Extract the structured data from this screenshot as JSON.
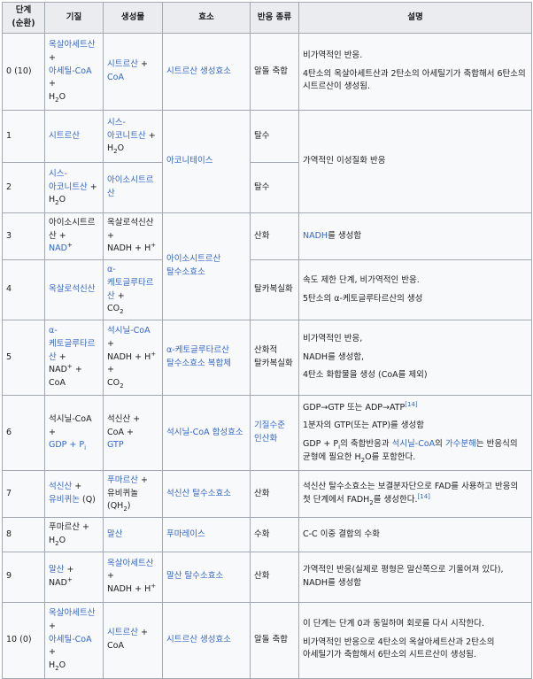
{
  "headers": [
    "단계 (순환)",
    "기질",
    "생성물",
    "효소",
    "반응 종류",
    "설명"
  ],
  "rows": [
    {
      "step": "0 (10)",
      "substrate": [
        [
          {
            "t": "옥살아세트산",
            "l": 1
          },
          {
            "t": " + "
          }
        ],
        [
          {
            "t": "아세틸-CoA",
            "l": 1
          },
          {
            "t": " + "
          }
        ],
        [
          {
            "t": "H"
          },
          {
            "t": "2",
            "sub": 1
          },
          {
            "t": "O"
          }
        ]
      ],
      "product": [
        [
          {
            "t": "시트르산",
            "l": 1
          },
          {
            "t": " + "
          }
        ],
        [
          {
            "t": "CoA",
            "l": 1
          }
        ]
      ],
      "enzyme": [
        [
          {
            "t": "시트르산 생성효소",
            "l": 1
          }
        ]
      ],
      "type": [
        [
          {
            "t": "알돌 축합"
          }
        ]
      ],
      "desc": [
        [
          {
            "t": "비가역적인 반응."
          }
        ],
        [
          {
            "t": "4탄소의 옥살아세트산과 2탄소의 아세틸기가 축합해서 6탄소의 시트르산이 생성됨."
          }
        ]
      ]
    },
    {
      "step": "1",
      "substrate": [
        [
          {
            "t": "시트르산",
            "l": 1
          }
        ]
      ],
      "product": [
        [
          {
            "t": "시스-아코니트산",
            "l": 1
          },
          {
            "t": " + "
          }
        ],
        [
          {
            "t": "H"
          },
          {
            "t": "2",
            "sub": 1
          },
          {
            "t": "O"
          }
        ]
      ],
      "enzyme": [
        [
          {
            "t": "아코니테이스",
            "l": 1
          }
        ]
      ],
      "type": [
        [
          {
            "t": "탈수"
          }
        ]
      ],
      "desc": [
        [
          {
            "t": "가역적인 이성질화 반응"
          }
        ]
      ]
    },
    {
      "step": "2",
      "substrate": [
        [
          {
            "t": "시스-아코니트산",
            "l": 1
          },
          {
            "t": " + "
          }
        ],
        [
          {
            "t": "H"
          },
          {
            "t": "2",
            "sub": 1
          },
          {
            "t": "O"
          }
        ]
      ],
      "product": [
        [
          {
            "t": "아이소시트르산",
            "l": 1
          }
        ]
      ],
      "type": [
        [
          {
            "t": "탈수"
          }
        ]
      ]
    },
    {
      "step": "3",
      "substrate": [
        [
          {
            "t": "아이소시트르산 + "
          }
        ],
        [
          {
            "t": "NAD",
            "l": 1
          },
          {
            "t": "+",
            "sup": 1
          }
        ]
      ],
      "product": [
        [
          {
            "t": "옥살로석신산 + "
          }
        ],
        [
          {
            "t": "NADH + H"
          },
          {
            "t": "+",
            "sup": 1
          }
        ]
      ],
      "enzyme": [
        [
          {
            "t": "아이소시트르산 탈수소효소",
            "l": 1
          }
        ]
      ],
      "type": [
        [
          {
            "t": "산화"
          }
        ]
      ],
      "desc": [
        [
          {
            "t": "NADH",
            "l": 1
          },
          {
            "t": "를 생성함"
          }
        ]
      ]
    },
    {
      "step": "4",
      "substrate": [
        [
          {
            "t": "옥살로석신산",
            "l": 1
          }
        ]
      ],
      "product": [
        [
          {
            "t": "α-케토글루타르산",
            "l": 1
          },
          {
            "t": " + "
          }
        ],
        [
          {
            "t": "CO"
          },
          {
            "t": "2",
            "sub": 1
          }
        ]
      ],
      "type": [
        [
          {
            "t": "탈카복실화"
          }
        ]
      ],
      "desc": [
        [
          {
            "t": "속도 제한 단계, 비가역적인 반응."
          }
        ],
        [
          {
            "t": "5탄소의 α-케토글루타르산의 생성"
          }
        ]
      ]
    },
    {
      "step": "5",
      "substrate": [
        [
          {
            "t": "α-케토글루타르산",
            "l": 1
          },
          {
            "t": " + "
          }
        ],
        [
          {
            "t": "NAD"
          },
          {
            "t": "+",
            "sup": 1
          },
          {
            "t": " + "
          }
        ],
        [
          {
            "t": "CoA"
          }
        ]
      ],
      "product": [
        [
          {
            "t": "석시닐-CoA",
            "l": 1
          },
          {
            "t": " + "
          }
        ],
        [
          {
            "t": "NADH + H"
          },
          {
            "t": "+",
            "sup": 1
          },
          {
            "t": " + "
          }
        ],
        [
          {
            "t": "CO"
          },
          {
            "t": "2",
            "sub": 1
          }
        ]
      ],
      "enzyme": [
        [
          {
            "t": "α-케토글루타르산 탈수소효소 복합체",
            "l": 1
          }
        ]
      ],
      "type": [
        [
          {
            "t": "산화적 탈카복실화"
          }
        ]
      ],
      "desc": [
        [
          {
            "t": "비가역적인 반응,"
          }
        ],
        [
          {
            "t": "NADH를 생성함,"
          }
        ],
        [
          {
            "t": "4탄소 화합물을 생성 (CoA를 제외)"
          }
        ]
      ]
    },
    {
      "step": "6",
      "substrate": [
        [
          {
            "t": "석시닐-CoA + "
          }
        ],
        [
          {
            "t": "GDP + P",
            "l": 1
          },
          {
            "t": "i",
            "sub": 1,
            "l": 1
          }
        ]
      ],
      "product": [
        [
          {
            "t": "석신산 + "
          }
        ],
        [
          {
            "t": "CoA + "
          }
        ],
        [
          {
            "t": "GTP",
            "l": 1
          }
        ]
      ],
      "enzyme": [
        [
          {
            "t": "석시닐-CoA 합성효소",
            "l": 1
          }
        ]
      ],
      "type": [
        [
          {
            "t": "기질수준 인산화",
            "l": 1
          }
        ]
      ],
      "desc": [
        [
          {
            "t": "GDP→GTP 또는 ADP→ATP"
          },
          {
            "t": "[14]",
            "sup": 1,
            "l": 1
          }
        ],
        [
          {
            "t": "1분자의 GTP(또는 ATP)를 생성함"
          }
        ],
        [
          {
            "t": "GDP + P"
          },
          {
            "t": "i",
            "sub": 1
          },
          {
            "t": "의 축합반응과 "
          },
          {
            "t": "석시닐-CoA",
            "l": 1
          },
          {
            "t": "의 "
          },
          {
            "t": "가수분해",
            "l": 1
          },
          {
            "t": "는 반응식의 균형에 필요한 H"
          },
          {
            "t": "2",
            "sub": 1
          },
          {
            "t": "O를 포함한다."
          }
        ]
      ]
    },
    {
      "step": "7",
      "substrate": [
        [
          {
            "t": "석신산",
            "l": 1
          },
          {
            "t": " + "
          }
        ],
        [
          {
            "t": "유비퀴논",
            "l": 1
          },
          {
            "t": " (Q)"
          }
        ]
      ],
      "product": [
        [
          {
            "t": "푸마르산",
            "l": 1
          },
          {
            "t": " + "
          }
        ],
        [
          {
            "t": "유비퀴놀 (QH"
          },
          {
            "t": "2",
            "sub": 1
          },
          {
            "t": ")"
          }
        ]
      ],
      "enzyme": [
        [
          {
            "t": "석신산 탈수소효소",
            "l": 1
          }
        ]
      ],
      "type": [
        [
          {
            "t": "산화"
          }
        ]
      ],
      "desc": [
        [
          {
            "t": "석신산 탈수소효소는 보결분자단으로 FAD를 사용하고 반응의 첫 단계에서 FADH"
          },
          {
            "t": "2",
            "sub": 1
          },
          {
            "t": "를 생성한다."
          },
          {
            "t": "[14]",
            "sup": 1,
            "l": 1
          }
        ]
      ]
    },
    {
      "step": "8",
      "substrate": [
        [
          {
            "t": "푸마르산 + "
          }
        ],
        [
          {
            "t": "H"
          },
          {
            "t": "2",
            "sub": 1
          },
          {
            "t": "O"
          }
        ]
      ],
      "product": [
        [
          {
            "t": "말산",
            "l": 1
          }
        ]
      ],
      "enzyme": [
        [
          {
            "t": "푸마레이스",
            "l": 1
          }
        ]
      ],
      "type": [
        [
          {
            "t": "수화"
          }
        ]
      ],
      "desc": [
        [
          {
            "t": "C-C 이중 결합의 수화"
          }
        ]
      ]
    },
    {
      "step": "9",
      "substrate": [
        [
          {
            "t": "말산",
            "l": 1
          },
          {
            "t": " + "
          }
        ],
        [
          {
            "t": "NAD"
          },
          {
            "t": "+",
            "sup": 1
          }
        ]
      ],
      "product": [
        [
          {
            "t": "옥살아세트산",
            "l": 1
          },
          {
            "t": " + "
          }
        ],
        [
          {
            "t": "NADH + H"
          },
          {
            "t": "+",
            "sup": 1
          }
        ]
      ],
      "enzyme": [
        [
          {
            "t": "말산 탈수소효소",
            "l": 1
          }
        ]
      ],
      "type": [
        [
          {
            "t": "산화"
          }
        ]
      ],
      "desc": [
        [
          {
            "t": "가역적인 반응(실제로 평형은 말산쪽으로 기울어져 있다), NADH를 생성함"
          }
        ]
      ]
    },
    {
      "step": "10 (0)",
      "substrate": [
        [
          {
            "t": "옥살아세트산",
            "l": 1
          },
          {
            "t": " + "
          }
        ],
        [
          {
            "t": "아세틸-CoA",
            "l": 1
          },
          {
            "t": " + "
          }
        ],
        [
          {
            "t": "H"
          },
          {
            "t": "2",
            "sub": 1
          },
          {
            "t": "O"
          }
        ]
      ],
      "product": [
        [
          {
            "t": "시트르산",
            "l": 1
          },
          {
            "t": " + "
          }
        ],
        [
          {
            "t": "CoA"
          }
        ]
      ],
      "enzyme": [
        [
          {
            "t": "시트르산 생성효소",
            "l": 1
          }
        ]
      ],
      "type": [
        [
          {
            "t": "알돌 축합"
          }
        ]
      ],
      "desc": [
        [
          {
            "t": "이 단계는 단계 0과 동일하며 회로를 다시 시작한다."
          }
        ],
        [
          {
            "t": "비가역적인 반응으로 4탄소의 옥살아세트산과 2탄소의 아세틸기가 축합해서 6탄소의 시트르산이 생성됨."
          }
        ]
      ]
    }
  ]
}
